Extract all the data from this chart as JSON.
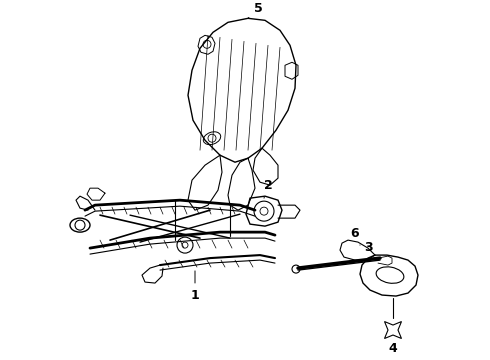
{
  "background_color": "#ffffff",
  "line_color": "#000000",
  "fig_width": 4.9,
  "fig_height": 3.6,
  "dpi": 100,
  "label_fontsize": 9
}
